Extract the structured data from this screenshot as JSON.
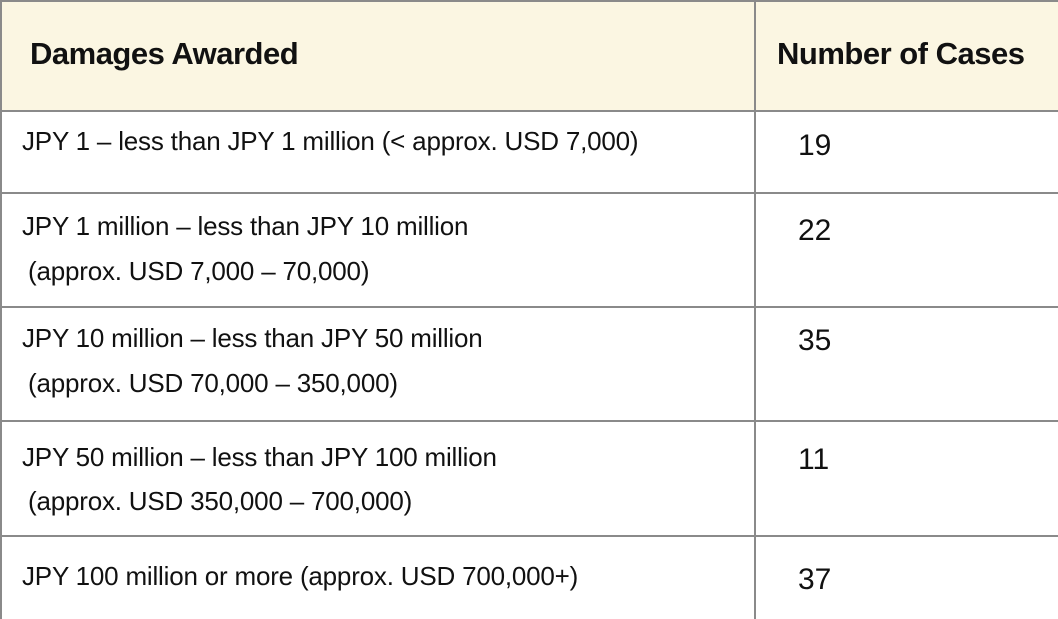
{
  "table": {
    "headers": {
      "damages": "Damages Awarded",
      "cases": "Number of Cases"
    },
    "rows": [
      {
        "range_line1": "JPY 1 – less than JPY 1 million (< approx. USD 7,000)",
        "range_line2": "",
        "cases": "19"
      },
      {
        "range_line1": "JPY 1 million – less than JPY 10 million",
        "range_line2": "(approx. USD 7,000 – 70,000)",
        "cases": "22"
      },
      {
        "range_line1": "JPY 10 million – less than JPY 50 million",
        "range_line2": "(approx. USD 70,000 – 350,000)",
        "cases": "35"
      },
      {
        "range_line1": "JPY 50 million – less than JPY 100 million",
        "range_line2": "(approx. USD 350,000 – 700,000)",
        "cases": "11"
      },
      {
        "range_line1": "JPY 100 million or more (approx. USD 700,000+)",
        "range_line2": "",
        "cases": "37"
      }
    ]
  },
  "colors": {
    "header_bg": "#fbf6e2",
    "border": "#8a8a8a",
    "text": "#111111"
  }
}
